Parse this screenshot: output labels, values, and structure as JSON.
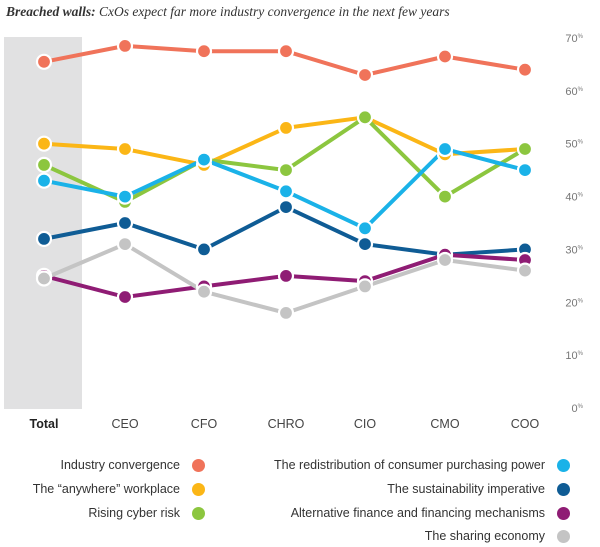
{
  "title_lead": "Breached walls:",
  "title_rest": " CxOs expect far more industry convergence in the next few years",
  "chart_data": {
    "type": "line",
    "categories": [
      "Total",
      "CEO",
      "CFO",
      "CHRO",
      "CIO",
      "CMO",
      "COO"
    ],
    "ylim": [
      0,
      70
    ],
    "yticks": [
      0,
      10,
      20,
      30,
      40,
      50,
      60,
      70
    ],
    "tick_suffix": "%",
    "grid": false,
    "legend_position": "bottom",
    "highlighted_category": "Total",
    "series": [
      {
        "name": "Industry convergence",
        "color": "#f0735a",
        "values": [
          65.5,
          68.5,
          67.5,
          67.5,
          63,
          66.5,
          64
        ]
      },
      {
        "name": "The “anywhere” workplace",
        "color": "#fbb616",
        "values": [
          50,
          49,
          46,
          53,
          55,
          48,
          49
        ]
      },
      {
        "name": "Rising cyber risk",
        "color": "#8cc63f",
        "values": [
          46,
          39,
          47,
          45,
          55,
          40,
          49
        ]
      },
      {
        "name": "The redistribution of consumer purchasing power",
        "color": "#1ab2e8",
        "values": [
          43,
          40,
          47,
          41,
          34,
          49,
          45
        ]
      },
      {
        "name": "The sustainability imperative",
        "color": "#0f5c95",
        "values": [
          32,
          35,
          30,
          38,
          31,
          29,
          30
        ]
      },
      {
        "name": "Alternative finance and financing mechanisms",
        "color": "#8f1c74",
        "values": [
          25,
          21,
          23,
          25,
          24,
          29,
          28
        ]
      },
      {
        "name": "The sharing economy",
        "color": "#c4c4c4",
        "values": [
          24.5,
          31,
          22,
          18,
          23,
          28,
          26
        ]
      }
    ]
  }
}
